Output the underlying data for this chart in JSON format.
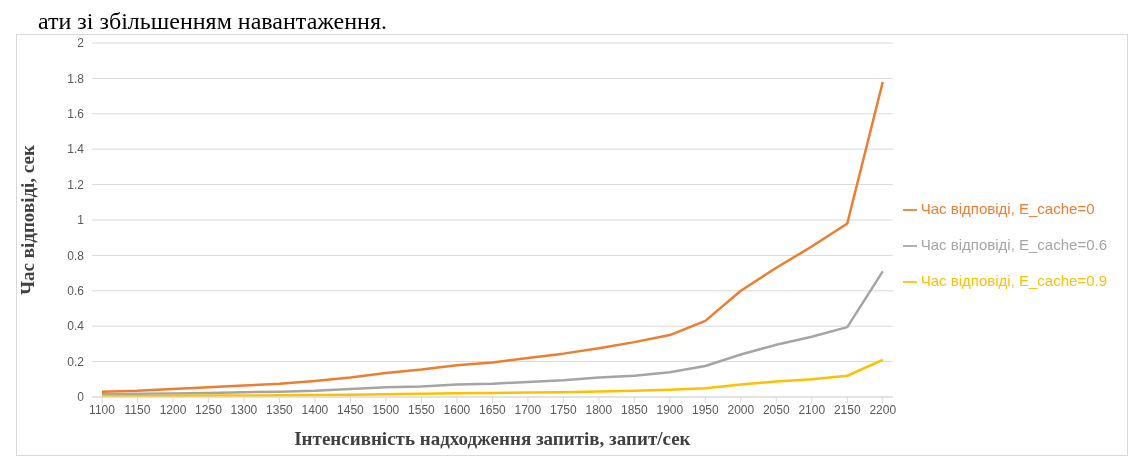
{
  "chart_data": {
    "type": "line",
    "annotations": [
      "ати зі збільшенням навантаження."
    ],
    "xlabel": "Інтенсивність надходження запитів, запит/сек",
    "ylabel": "Час відповіді, сек",
    "categories": [
      "1100",
      "1150",
      "1200",
      "1250",
      "1300",
      "1350",
      "1400",
      "1450",
      "1500",
      "1550",
      "1600",
      "1650",
      "1700",
      "1750",
      "1800",
      "1850",
      "1900",
      "1950",
      "2000",
      "2050",
      "2100",
      "2150",
      "2200"
    ],
    "series": [
      {
        "name": "Час відповіді, E_cache=0",
        "color": "#ed7d31",
        "values": [
          0.03,
          0.035,
          0.045,
          0.055,
          0.065,
          0.075,
          0.09,
          0.11,
          0.135,
          0.155,
          0.18,
          0.195,
          0.22,
          0.245,
          0.275,
          0.31,
          0.35,
          0.43,
          0.6,
          0.73,
          0.85,
          0.98,
          1.78
        ]
      },
      {
        "name": "Час відповіді, E_cache=0.6",
        "color": "#a5a5a5",
        "values": [
          0.015,
          0.018,
          0.02,
          0.023,
          0.027,
          0.03,
          0.035,
          0.045,
          0.055,
          0.06,
          0.07,
          0.075,
          0.085,
          0.095,
          0.11,
          0.12,
          0.14,
          0.175,
          0.24,
          0.295,
          0.34,
          0.395,
          0.71
        ]
      },
      {
        "name": "Час відповіді, E_cache=0.9",
        "color": "#ffc000",
        "values": [
          0.005,
          0.006,
          0.007,
          0.008,
          0.008,
          0.01,
          0.012,
          0.013,
          0.016,
          0.018,
          0.021,
          0.022,
          0.025,
          0.027,
          0.031,
          0.036,
          0.041,
          0.05,
          0.07,
          0.088,
          0.1,
          0.12,
          0.21
        ]
      }
    ],
    "ylim": [
      0,
      2
    ],
    "yticks": [
      0,
      0.2,
      0.4,
      0.6,
      0.8,
      1,
      1.2,
      1.4,
      1.6,
      1.8,
      2
    ],
    "grid": "y",
    "legend": "right",
    "marker": "none",
    "line_style": "solid"
  }
}
